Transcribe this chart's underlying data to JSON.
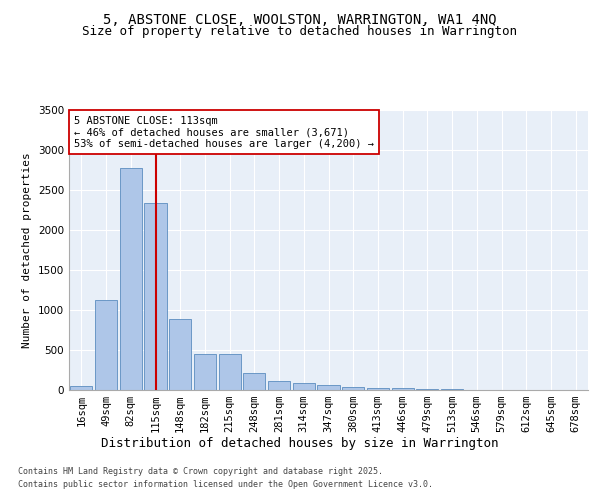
{
  "title1": "5, ABSTONE CLOSE, WOOLSTON, WARRINGTON, WA1 4NQ",
  "title2": "Size of property relative to detached houses in Warrington",
  "xlabel": "Distribution of detached houses by size in Warrington",
  "ylabel": "Number of detached properties",
  "categories": [
    "16sqm",
    "49sqm",
    "82sqm",
    "115sqm",
    "148sqm",
    "182sqm",
    "215sqm",
    "248sqm",
    "281sqm",
    "314sqm",
    "347sqm",
    "380sqm",
    "413sqm",
    "446sqm",
    "479sqm",
    "513sqm",
    "546sqm",
    "579sqm",
    "612sqm",
    "645sqm",
    "678sqm"
  ],
  "values": [
    50,
    1120,
    2780,
    2340,
    890,
    450,
    450,
    210,
    110,
    90,
    60,
    40,
    30,
    20,
    15,
    8,
    5,
    4,
    3,
    2,
    1
  ],
  "bar_color": "#aec6e8",
  "bar_edge_color": "#5b8dc0",
  "vline_x_idx": 3,
  "vline_color": "#cc0000",
  "annotation_text": "5 ABSTONE CLOSE: 113sqm\n← 46% of detached houses are smaller (3,671)\n53% of semi-detached houses are larger (4,200) →",
  "annotation_box_color": "#ffffff",
  "annotation_box_edge": "#cc0000",
  "ylim": [
    0,
    3500
  ],
  "yticks": [
    0,
    500,
    1000,
    1500,
    2000,
    2500,
    3000,
    3500
  ],
  "background_color": "#e8eff8",
  "grid_color": "#ffffff",
  "footer_line1": "Contains HM Land Registry data © Crown copyright and database right 2025.",
  "footer_line2": "Contains public sector information licensed under the Open Government Licence v3.0.",
  "title_fontsize": 10,
  "subtitle_fontsize": 9,
  "xlabel_fontsize": 9,
  "ylabel_fontsize": 8,
  "tick_fontsize": 7.5,
  "annotation_fontsize": 7.5,
  "footer_fontsize": 6
}
